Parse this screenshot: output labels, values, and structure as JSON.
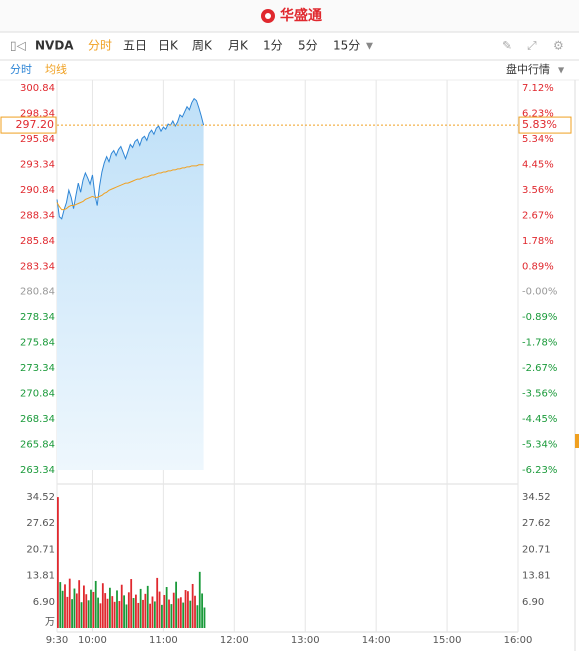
{
  "header": {
    "logo": "华盛通"
  },
  "toolbar": {
    "symbol": "NVDA",
    "tabs": [
      "分时",
      "五日",
      "日K",
      "周K",
      "月K",
      "1分",
      "5分",
      "15分"
    ]
  },
  "subbar": {
    "left": [
      "分时",
      "均线"
    ],
    "right": "盘中行情"
  },
  "chart_data": {
    "type": "line",
    "x": [
      0,
      2,
      4,
      6,
      8,
      10,
      12,
      14,
      16,
      18,
      20,
      22,
      24,
      26,
      28,
      30,
      32,
      34,
      36,
      38,
      40,
      42,
      44,
      46,
      48,
      50,
      52,
      54,
      56,
      58,
      60,
      62,
      64,
      66,
      68,
      70,
      72,
      74,
      76,
      78,
      80,
      82,
      84,
      86,
      88,
      90,
      92,
      94,
      96,
      98,
      100,
      102,
      104,
      106,
      108,
      110,
      112,
      114,
      116,
      118,
      120,
      122,
      124
    ],
    "xlim": [
      0,
      390
    ],
    "xticks": [
      {
        "value": 0,
        "label": "9:30"
      },
      {
        "value": 30,
        "label": "10:00"
      },
      {
        "value": 90,
        "label": "11:00"
      },
      {
        "value": 150,
        "label": "12:00"
      },
      {
        "value": 210,
        "label": "13:00"
      },
      {
        "value": 270,
        "label": "14:00"
      },
      {
        "value": 330,
        "label": "15:00"
      },
      {
        "value": 390,
        "label": "16:00"
      }
    ],
    "series": [
      {
        "name": "分时",
        "color": "#2f86d6",
        "values": [
          289.9,
          288.2,
          288.0,
          288.9,
          289.6,
          290.8,
          290.1,
          289.0,
          290.3,
          291.5,
          290.6,
          291.8,
          292.5,
          292.0,
          291.4,
          292.3,
          290.4,
          289.3,
          291.2,
          292.6,
          293.5,
          294.1,
          293.6,
          294.4,
          294.7,
          294.2,
          294.8,
          295.1,
          294.5,
          293.9,
          294.6,
          295.3,
          295.0,
          295.6,
          295.8,
          295.2,
          295.9,
          296.1,
          295.7,
          296.4,
          296.7,
          296.3,
          296.9,
          297.1,
          296.6,
          297.0,
          296.8,
          297.3,
          297.2,
          297.6,
          297.1,
          297.5,
          298.2,
          298.0,
          298.5,
          299.0,
          298.7,
          299.4,
          299.8,
          299.6,
          298.9,
          298.1,
          297.2
        ]
      },
      {
        "name": "均线",
        "color": "#f0a020",
        "values": [
          289.6,
          289.2,
          288.9,
          288.9,
          289.0,
          289.2,
          289.3,
          289.3,
          289.4,
          289.5,
          289.6,
          289.7,
          289.9,
          290.0,
          290.1,
          290.2,
          290.1,
          290.1,
          290.2,
          290.3,
          290.5,
          290.6,
          290.8,
          290.9,
          291.0,
          291.1,
          291.2,
          291.3,
          291.4,
          291.5,
          291.5,
          291.6,
          291.7,
          291.8,
          291.9,
          291.9,
          292.0,
          292.1,
          292.1,
          292.2,
          292.3,
          292.3,
          292.4,
          292.5,
          292.5,
          292.6,
          292.6,
          292.7,
          292.7,
          292.8,
          292.8,
          292.9,
          292.9,
          293.0,
          293.0,
          293.1,
          293.1,
          293.2,
          293.2,
          293.2,
          293.3,
          293.3,
          293.3
        ]
      }
    ],
    "ylim": [
      263.34,
      300.84
    ],
    "yticks": [
      300.84,
      298.34,
      295.84,
      293.34,
      290.84,
      288.34,
      285.84,
      283.34,
      280.84,
      278.34,
      275.84,
      273.34,
      270.84,
      268.34,
      265.84,
      263.34
    ],
    "y2lim": [
      -6.23,
      7.12
    ],
    "y2ticks": [
      {
        "value": 7.12,
        "label": "7.12%"
      },
      {
        "value": 6.23,
        "label": "6.23%"
      },
      {
        "value": 5.34,
        "label": "5.34%"
      },
      {
        "value": 4.45,
        "label": "4.45%"
      },
      {
        "value": 3.56,
        "label": "3.56%"
      },
      {
        "value": 2.67,
        "label": "2.67%"
      },
      {
        "value": 1.78,
        "label": "1.78%"
      },
      {
        "value": 0.89,
        "label": "0.89%"
      },
      {
        "value": 0,
        "label": "-0.00%"
      },
      {
        "value": -0.89,
        "label": "-0.89%"
      },
      {
        "value": -1.78,
        "label": "-1.78%"
      },
      {
        "value": -2.67,
        "label": "-2.67%"
      },
      {
        "value": -3.56,
        "label": "-3.56%"
      },
      {
        "value": -4.45,
        "label": "-4.45%"
      },
      {
        "value": -5.34,
        "label": "-5.34%"
      },
      {
        "value": -6.23,
        "label": "-6.23%"
      }
    ],
    "current_price": {
      "value": 297.2,
      "label": "297.20"
    },
    "current_change": {
      "value": 5.83,
      "label": "5.83%"
    },
    "up_color": "#e0282e",
    "down_color": "#1a9a3a",
    "flat_color": "#999999",
    "volume": {
      "unit": "万",
      "ylim": [
        0,
        34.52
      ],
      "yticks": [
        34.52,
        27.62,
        20.71,
        13.81,
        {
          "value": 6.9,
          "label": "6.90"
        }
      ],
      "values": [
        34.5,
        12.1,
        9.8,
        11.5,
        8.2,
        13.0,
        7.6,
        10.4,
        9.1,
        12.6,
        6.8,
        11.2,
        8.9,
        7.3,
        10.1,
        9.5,
        12.4,
        8.0,
        6.5,
        11.8,
        9.2,
        7.7,
        10.6,
        8.4,
        6.9,
        9.9,
        7.1,
        11.4,
        8.6,
        6.2,
        9.4,
        12.9,
        7.9,
        8.8,
        6.6,
        10.3,
        7.4,
        9.0,
        11.1,
        6.4,
        8.3,
        7.0,
        13.2,
        9.6,
        6.1,
        8.7,
        10.8,
        7.5,
        6.3,
        9.3,
        12.2,
        7.8,
        8.1,
        6.7,
        10.0,
        9.7,
        7.2,
        11.6,
        8.5,
        6.0,
        14.8,
        9.1,
        5.4
      ]
    }
  }
}
